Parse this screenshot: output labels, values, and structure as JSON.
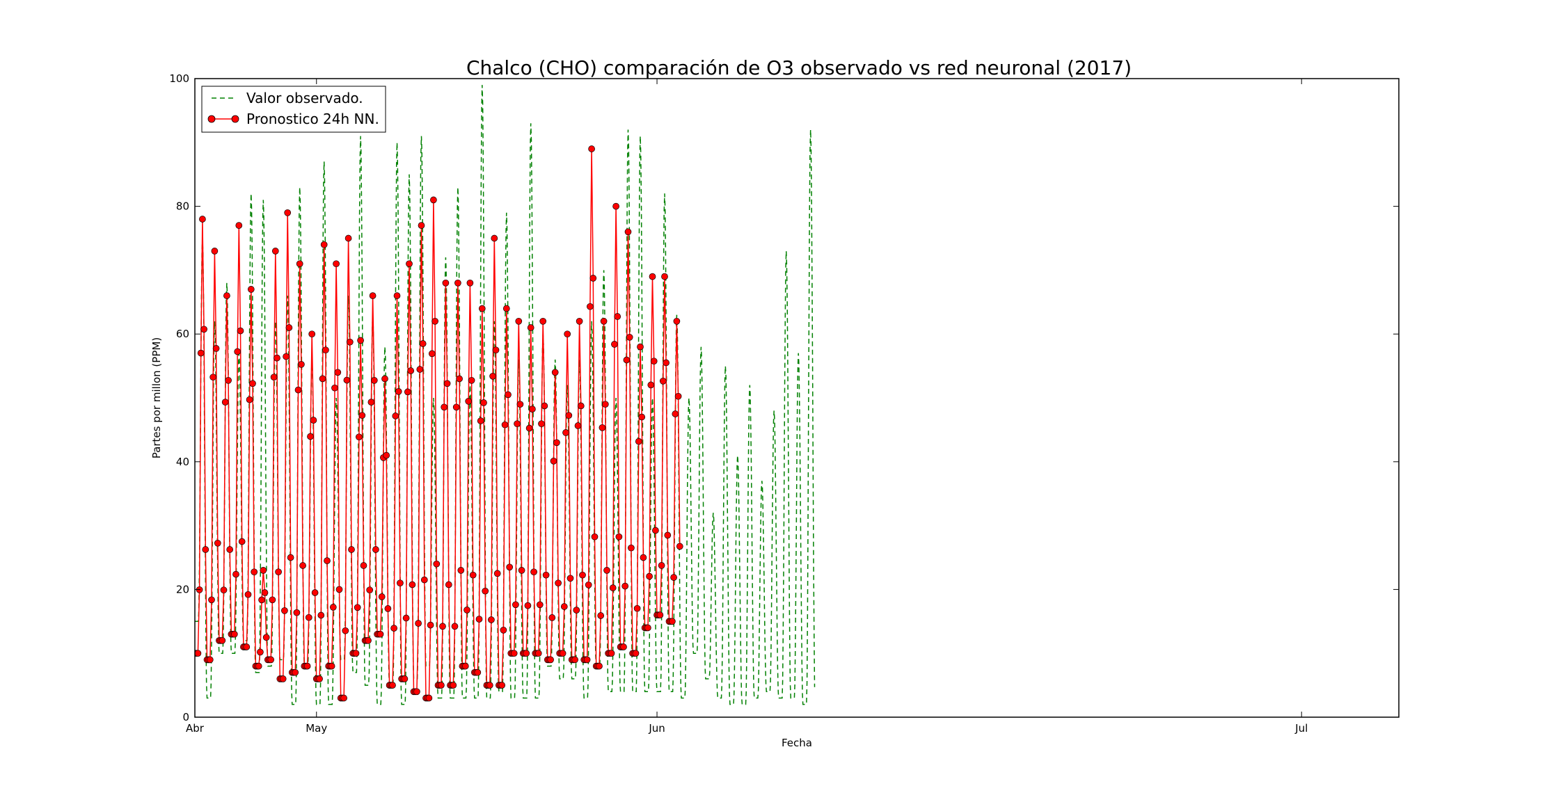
{
  "chart_data": {
    "type": "line",
    "title": "Chalco (CHO) comparación de O3 observado vs red neuronal (2017)",
    "xlabel": "Fecha",
    "ylabel": "Partes por millon (PPM)",
    "xlim": [
      "2017-04-01",
      "2017-07-09"
    ],
    "ylim": [
      0,
      100
    ],
    "yticks": [
      0,
      20,
      40,
      60,
      80,
      100
    ],
    "xticks": [
      {
        "date": "2017-04-01",
        "label": "Abr"
      },
      {
        "date": "2017-04-11",
        "label": "May"
      },
      {
        "date": "2017-05-09",
        "label": "Jun"
      },
      {
        "date": "2017-07-01",
        "label": "Jul"
      }
    ],
    "grid": false,
    "legend_position": "top-left",
    "legend": [
      {
        "label": "Valor observado.",
        "style": "dashed",
        "color": "#008000"
      },
      {
        "label": "Pronostico 24h NN.",
        "style": "solid-marker",
        "color": "#ff0000"
      }
    ],
    "series": [
      {
        "name": "Valor observado.",
        "color": "#008000",
        "daily_amplitude": [
          [
            75,
            15
          ],
          [
            62,
            3
          ],
          [
            68,
            10
          ],
          [
            57,
            10
          ],
          [
            82,
            12
          ],
          [
            81,
            7
          ],
          [
            62,
            8
          ],
          [
            66,
            9
          ],
          [
            83,
            2
          ],
          [
            56,
            8
          ],
          [
            87,
            2
          ],
          [
            50,
            2
          ],
          [
            66,
            9
          ],
          [
            91,
            7
          ],
          [
            63,
            5
          ],
          [
            58,
            2
          ],
          [
            90,
            5
          ],
          [
            85,
            2
          ],
          [
            91,
            6
          ],
          [
            50,
            8
          ],
          [
            72,
            3
          ],
          [
            83,
            3
          ],
          [
            52,
            3
          ],
          [
            99,
            3
          ],
          [
            62,
            3
          ],
          [
            79,
            4
          ],
          [
            56,
            3
          ],
          [
            93,
            3
          ],
          [
            60,
            3
          ],
          [
            56,
            8
          ],
          [
            52,
            6
          ],
          [
            56,
            6
          ],
          [
            62,
            3
          ],
          [
            70,
            8
          ],
          [
            50,
            4
          ],
          [
            92,
            4
          ],
          [
            91,
            4
          ],
          [
            50,
            4
          ],
          [
            82,
            4
          ],
          [
            63,
            4
          ],
          [
            50,
            3
          ],
          [
            58,
            10
          ],
          [
            32,
            6
          ],
          [
            55,
            3
          ],
          [
            41,
            2
          ],
          [
            52,
            2
          ],
          [
            37,
            3
          ],
          [
            48,
            4
          ],
          [
            73,
            3
          ],
          [
            57,
            3
          ],
          [
            92,
            2
          ]
        ]
      },
      {
        "name": "Pronostico 24h NN.",
        "color": "#ff0000",
        "daily_amplitude": [
          [
            78,
            10
          ],
          [
            73,
            9
          ],
          [
            66,
            12
          ],
          [
            77,
            13
          ],
          [
            67,
            11
          ],
          [
            23,
            8
          ],
          [
            73,
            9
          ],
          [
            79,
            6
          ],
          [
            71,
            7
          ],
          [
            60,
            8
          ],
          [
            74,
            6
          ],
          [
            71,
            8
          ],
          [
            75,
            3
          ],
          [
            59,
            10
          ],
          [
            66,
            12
          ],
          [
            53,
            13
          ],
          [
            66,
            5
          ],
          [
            71,
            6
          ],
          [
            77,
            4
          ],
          [
            81,
            3
          ],
          [
            68,
            5
          ],
          [
            68,
            5
          ],
          [
            68,
            8
          ],
          [
            64,
            7
          ],
          [
            75,
            5
          ],
          [
            64,
            5
          ],
          [
            62,
            10
          ],
          [
            61,
            10
          ],
          [
            62,
            10
          ],
          [
            54,
            9
          ],
          [
            60,
            10
          ],
          [
            62,
            9
          ],
          [
            89,
            9
          ],
          [
            62,
            8
          ],
          [
            80,
            10
          ],
          [
            76,
            11
          ],
          [
            58,
            10
          ],
          [
            69,
            14
          ],
          [
            69,
            16
          ],
          [
            62,
            15
          ]
        ]
      }
    ]
  }
}
